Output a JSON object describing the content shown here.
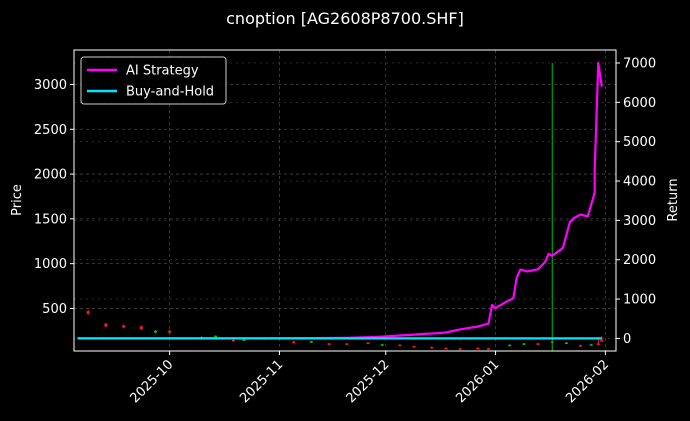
{
  "chart_data": {
    "type": "line",
    "title": "cnoption [AG2608P8700.SHF]",
    "ylabel_left": "Price",
    "ylabel_right": "Return",
    "x_tick_labels": [
      "2025-10",
      "2025-11",
      "2025-12",
      "2026-01",
      "2026-02"
    ],
    "x_tick_dates": [
      "2025-10-01",
      "2025-11-01",
      "2025-12-01",
      "2026-01-01",
      "2026-02-01"
    ],
    "x_range": [
      "2025-09-04",
      "2026-02-04"
    ],
    "y_left_ticks": [
      500,
      1000,
      1500,
      2000,
      2500,
      3000
    ],
    "y_left_range": [
      25,
      3385
    ],
    "y_right_ticks": [
      0,
      1000,
      2000,
      3000,
      4000,
      5000,
      6000,
      7000
    ],
    "y_right_range": [
      -320,
      7330
    ],
    "grid": true,
    "legend_placement": "top-left",
    "marker_date": "2026-01-17",
    "colors": {
      "background": "#000000",
      "strategy": "#ff00ff",
      "buy_and_hold": "#00e5ff",
      "marker_line": "#00c000",
      "candle_up": "#00c000",
      "candle_down": "#ff1a1a",
      "grid": "#444444",
      "text": "#ffffff"
    },
    "series": [
      {
        "name": "AI Strategy",
        "axis": "right",
        "points": [
          [
            "2025-09-05",
            0
          ],
          [
            "2025-10-01",
            0
          ],
          [
            "2025-11-01",
            0
          ],
          [
            "2025-11-20",
            15
          ],
          [
            "2025-11-28",
            35
          ],
          [
            "2025-12-01",
            50
          ],
          [
            "2025-12-08",
            90
          ],
          [
            "2025-12-12",
            115
          ],
          [
            "2025-12-15",
            130
          ],
          [
            "2025-12-18",
            150
          ],
          [
            "2025-12-21",
            210
          ],
          [
            "2025-12-24",
            260
          ],
          [
            "2025-12-27",
            300
          ],
          [
            "2025-12-30",
            380
          ],
          [
            "2025-12-31",
            850
          ],
          [
            "2026-01-01",
            770
          ],
          [
            "2026-01-04",
            930
          ],
          [
            "2026-01-06",
            1020
          ],
          [
            "2026-01-07",
            1550
          ],
          [
            "2026-01-08",
            1750
          ],
          [
            "2026-01-10",
            1700
          ],
          [
            "2026-01-13",
            1760
          ],
          [
            "2026-01-15",
            1950
          ],
          [
            "2026-01-16",
            2150
          ],
          [
            "2026-01-17",
            2100
          ],
          [
            "2026-01-20",
            2300
          ],
          [
            "2026-01-22",
            2960
          ],
          [
            "2026-01-23",
            3050
          ],
          [
            "2026-01-25",
            3150
          ],
          [
            "2026-01-27",
            3100
          ],
          [
            "2026-01-29",
            3700
          ],
          [
            "2026-01-29",
            4300
          ],
          [
            "2026-01-30",
            7000
          ],
          [
            "2026-01-31",
            6400
          ]
        ]
      },
      {
        "name": "Buy-and-Hold",
        "axis": "right",
        "points": [
          [
            "2025-09-05",
            0
          ],
          [
            "2026-01-31",
            0
          ]
        ]
      }
    ],
    "price_candles": [
      {
        "date": "2025-09-08",
        "open": 470,
        "close": 440,
        "high": 480,
        "low": 430
      },
      {
        "date": "2025-09-13",
        "open": 330,
        "close": 300,
        "high": 340,
        "low": 290
      },
      {
        "date": "2025-09-18",
        "open": 310,
        "close": 290,
        "high": 320,
        "low": 280
      },
      {
        "date": "2025-09-23",
        "open": 300,
        "close": 270,
        "high": 310,
        "low": 260
      },
      {
        "date": "2025-09-27",
        "open": 230,
        "close": 250,
        "high": 260,
        "low": 220
      },
      {
        "date": "2025-10-01",
        "open": 250,
        "close": 230,
        "high": 260,
        "low": 220
      },
      {
        "date": "2025-10-10",
        "open": 180,
        "close": 160,
        "high": 190,
        "low": 150
      },
      {
        "date": "2025-10-14",
        "open": 180,
        "close": 195,
        "high": 200,
        "low": 170
      },
      {
        "date": "2025-10-19",
        "open": 150,
        "close": 135,
        "high": 160,
        "low": 130
      },
      {
        "date": "2025-10-22",
        "open": 140,
        "close": 155,
        "high": 160,
        "low": 135
      },
      {
        "date": "2025-10-28",
        "open": 170,
        "close": 155,
        "high": 175,
        "low": 150
      },
      {
        "date": "2025-11-05",
        "open": 130,
        "close": 120,
        "high": 140,
        "low": 115
      },
      {
        "date": "2025-11-10",
        "open": 120,
        "close": 135,
        "high": 140,
        "low": 115
      },
      {
        "date": "2025-11-15",
        "open": 110,
        "close": 100,
        "high": 115,
        "low": 95
      },
      {
        "date": "2025-11-20",
        "open": 110,
        "close": 100,
        "high": 115,
        "low": 95
      },
      {
        "date": "2025-11-26",
        "open": 120,
        "close": 110,
        "high": 125,
        "low": 105
      },
      {
        "date": "2025-11-30",
        "open": 90,
        "close": 100,
        "high": 105,
        "low": 85
      },
      {
        "date": "2025-12-05",
        "open": 95,
        "close": 85,
        "high": 100,
        "low": 80
      },
      {
        "date": "2025-12-09",
        "open": 80,
        "close": 72,
        "high": 85,
        "low": 68
      },
      {
        "date": "2025-12-14",
        "open": 70,
        "close": 65,
        "high": 75,
        "low": 60
      },
      {
        "date": "2025-12-18",
        "open": 60,
        "close": 55,
        "high": 65,
        "low": 50
      },
      {
        "date": "2025-12-22",
        "open": 55,
        "close": 50,
        "high": 60,
        "low": 45
      },
      {
        "date": "2025-12-27",
        "open": 60,
        "close": 52,
        "high": 65,
        "low": 48
      },
      {
        "date": "2025-12-30",
        "open": 55,
        "close": 50,
        "high": 60,
        "low": 45
      },
      {
        "date": "2026-01-05",
        "open": 80,
        "close": 95,
        "high": 100,
        "low": 75
      },
      {
        "date": "2026-01-09",
        "open": 100,
        "close": 110,
        "high": 115,
        "low": 95
      },
      {
        "date": "2026-01-13",
        "open": 110,
        "close": 100,
        "high": 115,
        "low": 95
      },
      {
        "date": "2026-01-17",
        "open": 130,
        "close": 120,
        "high": 140,
        "low": 115
      },
      {
        "date": "2026-01-21",
        "open": 110,
        "close": 120,
        "high": 125,
        "low": 105
      },
      {
        "date": "2026-01-25",
        "open": 90,
        "close": 80,
        "high": 95,
        "low": 75
      },
      {
        "date": "2026-01-28",
        "open": 90,
        "close": 100,
        "high": 105,
        "low": 85
      },
      {
        "date": "2026-01-30",
        "open": 110,
        "close": 100,
        "high": 180,
        "low": 95
      },
      {
        "date": "2026-01-31",
        "open": 150,
        "close": 130,
        "high": 190,
        "low": 125
      }
    ]
  }
}
